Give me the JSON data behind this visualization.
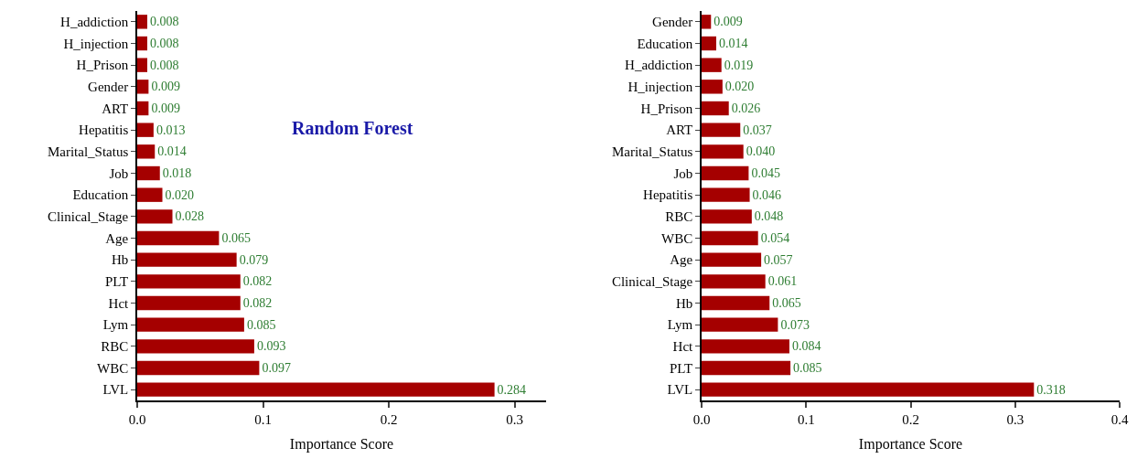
{
  "chart_data": [
    {
      "type": "bar",
      "orientation": "horizontal",
      "title": "Random Forest",
      "xlabel": "Importance Score",
      "categories": [
        "H_addiction",
        "H_injection",
        "H_Prison",
        "Gender",
        "ART",
        "Hepatitis",
        "Marital_Status",
        "Job",
        "Education",
        "Clinical_Stage",
        "Age",
        "Hb",
        "PLT",
        "Hct",
        "Lym",
        "RBC",
        "WBC",
        "LVL"
      ],
      "values": [
        0.008,
        0.008,
        0.008,
        0.009,
        0.009,
        0.013,
        0.014,
        0.018,
        0.02,
        0.028,
        0.065,
        0.079,
        0.082,
        0.082,
        0.085,
        0.093,
        0.097,
        0.284
      ],
      "value_labels": [
        "0.008",
        "0.008",
        "0.008",
        "0.009",
        "0.009",
        "0.013",
        "0.014",
        "0.018",
        "0.020",
        "0.028",
        "0.065",
        "0.079",
        "0.082",
        "0.082",
        "0.085",
        "0.093",
        "0.097",
        "0.284"
      ],
      "color": "#a50000",
      "xlim": [
        0,
        0.325
      ],
      "xticks": [
        {
          "value": 0,
          "label": "0.0"
        },
        {
          "value": 0.1,
          "label": "0.1"
        },
        {
          "value": 0.2,
          "label": "0.2"
        },
        {
          "value": 0.3,
          "label": "0.3"
        }
      ],
      "grid": false
    },
    {
      "type": "bar",
      "orientation": "horizontal",
      "xlabel": "Importance Score",
      "categories": [
        "Gender",
        "Education",
        "H_addiction",
        "H_injection",
        "H_Prison",
        "ART",
        "Marital_Status",
        "Job",
        "Hepatitis",
        "RBC",
        "WBC",
        "Age",
        "Clinical_Stage",
        "Hb",
        "Lym",
        "Hct",
        "PLT",
        "LVL"
      ],
      "values": [
        0.009,
        0.014,
        0.019,
        0.02,
        0.026,
        0.037,
        0.04,
        0.045,
        0.046,
        0.048,
        0.054,
        0.057,
        0.061,
        0.065,
        0.073,
        0.084,
        0.085,
        0.318
      ],
      "value_labels": [
        "0.009",
        "0.014",
        "0.019",
        "0.020",
        "0.026",
        "0.037",
        "0.040",
        "0.045",
        "0.046",
        "0.048",
        "0.054",
        "0.057",
        "0.061",
        "0.065",
        "0.073",
        "0.084",
        "0.085",
        "0.318"
      ],
      "color": "#a50000",
      "xlim": [
        0,
        0.4
      ],
      "xticks": [
        {
          "value": 0,
          "label": "0.0"
        },
        {
          "value": 0.1,
          "label": "0.1"
        },
        {
          "value": 0.2,
          "label": "0.2"
        },
        {
          "value": 0.3,
          "label": "0.3"
        },
        {
          "value": 0.4,
          "label": "0.4"
        }
      ],
      "grid": false
    }
  ]
}
